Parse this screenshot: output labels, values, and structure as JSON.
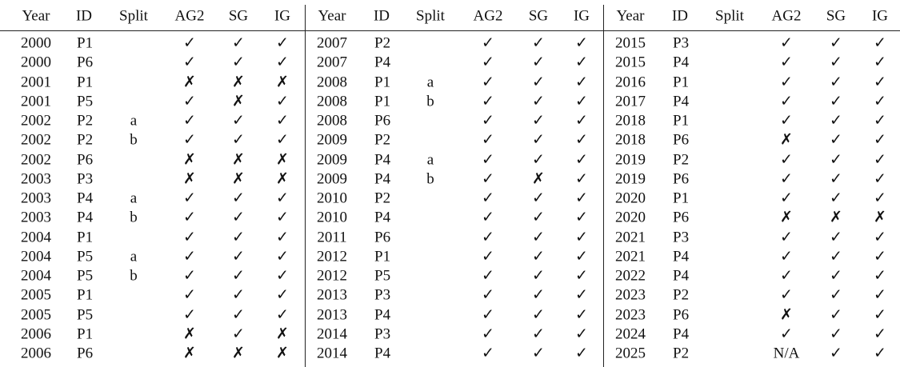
{
  "columns": [
    "Year",
    "ID",
    "Split",
    "AG2",
    "SG",
    "IG"
  ],
  "blocks": [
    {
      "rows": [
        [
          "2000",
          "P1",
          null,
          "✓",
          "✓",
          "✓"
        ],
        [
          "2000",
          "P6",
          null,
          "✓",
          "✓",
          "✓"
        ],
        [
          "2001",
          "P1",
          null,
          "✗",
          "✗",
          "✗"
        ],
        [
          "2001",
          "P5",
          null,
          "✓",
          "✗",
          "✓"
        ],
        [
          "2002",
          "P2",
          "a",
          "✓",
          "✓",
          "✓"
        ],
        [
          "2002",
          "P2",
          "b",
          "✓",
          "✓",
          "✓"
        ],
        [
          "2002",
          "P6",
          null,
          "✗",
          "✗",
          "✗"
        ],
        [
          "2003",
          "P3",
          null,
          "✗",
          "✗",
          "✗"
        ],
        [
          "2003",
          "P4",
          "a",
          "✓",
          "✓",
          "✓"
        ],
        [
          "2003",
          "P4",
          "b",
          "✓",
          "✓",
          "✓"
        ],
        [
          "2004",
          "P1",
          null,
          "✓",
          "✓",
          "✓"
        ],
        [
          "2004",
          "P5",
          "a",
          "✓",
          "✓",
          "✓"
        ],
        [
          "2004",
          "P5",
          "b",
          "✓",
          "✓",
          "✓"
        ],
        [
          "2005",
          "P1",
          null,
          "✓",
          "✓",
          "✓"
        ],
        [
          "2005",
          "P5",
          null,
          "✓",
          "✓",
          "✓"
        ],
        [
          "2006",
          "P1",
          null,
          "✗",
          "✓",
          "✗"
        ],
        [
          "2006",
          "P6",
          null,
          "✗",
          "✗",
          "✗"
        ]
      ]
    },
    {
      "rows": [
        [
          "2007",
          "P2",
          null,
          "✓",
          "✓",
          "✓"
        ],
        [
          "2007",
          "P4",
          null,
          "✓",
          "✓",
          "✓"
        ],
        [
          "2008",
          "P1",
          "a",
          "✓",
          "✓",
          "✓"
        ],
        [
          "2008",
          "P1",
          "b",
          "✓",
          "✓",
          "✓"
        ],
        [
          "2008",
          "P6",
          null,
          "✓",
          "✓",
          "✓"
        ],
        [
          "2009",
          "P2",
          null,
          "✓",
          "✓",
          "✓"
        ],
        [
          "2009",
          "P4",
          "a",
          "✓",
          "✓",
          "✓"
        ],
        [
          "2009",
          "P4",
          "b",
          "✓",
          "✗",
          "✓"
        ],
        [
          "2010",
          "P2",
          null,
          "✓",
          "✓",
          "✓"
        ],
        [
          "2010",
          "P4",
          null,
          "✓",
          "✓",
          "✓"
        ],
        [
          "2011",
          "P6",
          null,
          "✓",
          "✓",
          "✓"
        ],
        [
          "2012",
          "P1",
          null,
          "✓",
          "✓",
          "✓"
        ],
        [
          "2012",
          "P5",
          null,
          "✓",
          "✓",
          "✓"
        ],
        [
          "2013",
          "P3",
          null,
          "✓",
          "✓",
          "✓"
        ],
        [
          "2013",
          "P4",
          null,
          "✓",
          "✓",
          "✓"
        ],
        [
          "2014",
          "P3",
          null,
          "✓",
          "✓",
          "✓"
        ],
        [
          "2014",
          "P4",
          null,
          "✓",
          "✓",
          "✓"
        ]
      ]
    },
    {
      "rows": [
        [
          "2015",
          "P3",
          null,
          "✓",
          "✓",
          "✓"
        ],
        [
          "2015",
          "P4",
          null,
          "✓",
          "✓",
          "✓"
        ],
        [
          "2016",
          "P1",
          null,
          "✓",
          "✓",
          "✓"
        ],
        [
          "2017",
          "P4",
          null,
          "✓",
          "✓",
          "✓"
        ],
        [
          "2018",
          "P1",
          null,
          "✓",
          "✓",
          "✓"
        ],
        [
          "2018",
          "P6",
          null,
          "✗",
          "✓",
          "✓"
        ],
        [
          "2019",
          "P2",
          null,
          "✓",
          "✓",
          "✓"
        ],
        [
          "2019",
          "P6",
          null,
          "✓",
          "✓",
          "✓"
        ],
        [
          "2020",
          "P1",
          null,
          "✓",
          "✓",
          "✓"
        ],
        [
          "2020",
          "P6",
          null,
          "✗",
          "✗",
          "✗"
        ],
        [
          "2021",
          "P3",
          null,
          "✓",
          "✓",
          "✓"
        ],
        [
          "2021",
          "P4",
          null,
          "✓",
          "✓",
          "✓"
        ],
        [
          "2022",
          "P4",
          null,
          "✓",
          "✓",
          "✓"
        ],
        [
          "2023",
          "P2",
          null,
          "✓",
          "✓",
          "✓"
        ],
        [
          "2023",
          "P6",
          null,
          "✗",
          "✓",
          "✓"
        ],
        [
          "2024",
          "P4",
          null,
          "✓",
          "✓",
          "✓"
        ],
        [
          "2025",
          "P2",
          null,
          "N/A",
          "✓",
          "✓"
        ]
      ]
    }
  ]
}
